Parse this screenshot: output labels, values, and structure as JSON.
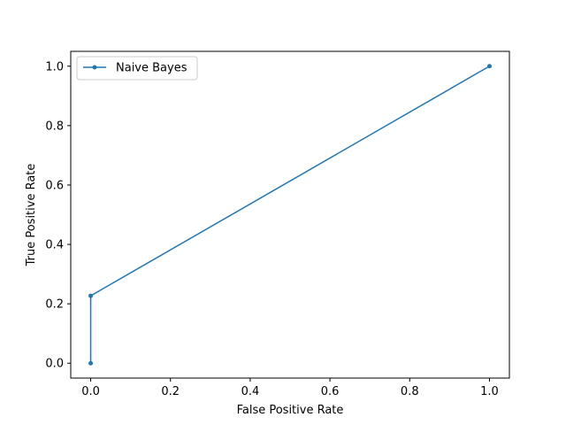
{
  "chart_data": {
    "type": "line",
    "title": "",
    "xlabel": "False Positive Rate",
    "ylabel": "True Positive Rate",
    "xlim": [
      -0.05,
      1.05
    ],
    "ylim": [
      -0.05,
      1.05
    ],
    "xticks": [
      0.0,
      0.2,
      0.4,
      0.6,
      0.8,
      1.0
    ],
    "yticks": [
      0.0,
      0.2,
      0.4,
      0.6,
      0.8,
      1.0
    ],
    "xtick_labels": [
      "0.0",
      "0.2",
      "0.4",
      "0.6",
      "0.8",
      "1.0"
    ],
    "ytick_labels": [
      "0.0",
      "0.2",
      "0.4",
      "0.6",
      "0.8",
      "1.0"
    ],
    "grid": false,
    "legend_position": "upper-left",
    "series": [
      {
        "name": "Naive Bayes",
        "color": "#1f77b4",
        "marker": "circle",
        "x": [
          0.0,
          0.0,
          1.0
        ],
        "y": [
          0.0,
          0.227,
          1.0
        ]
      }
    ]
  }
}
